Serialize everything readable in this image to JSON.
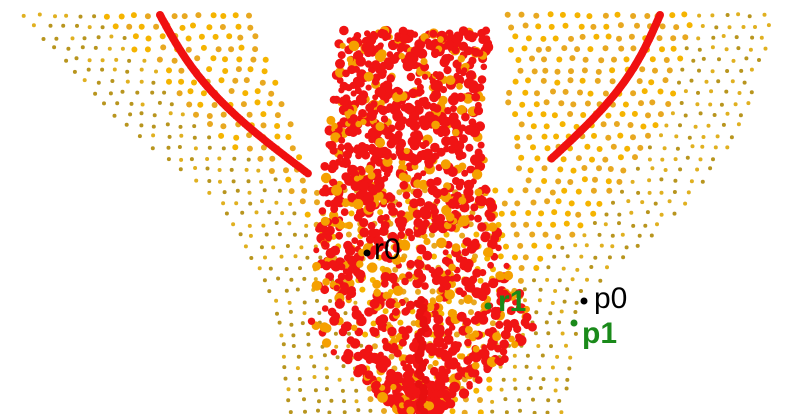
{
  "labels": {
    "r0": "r0",
    "r1": "r1",
    "p0": "p0",
    "p1": "p1"
  }
}
